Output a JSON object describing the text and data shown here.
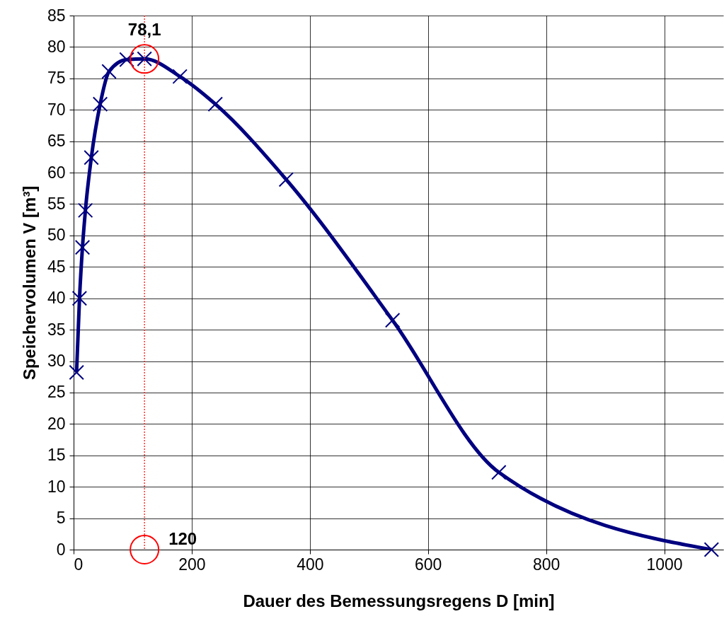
{
  "chart_data": {
    "type": "line",
    "xlabel": "Dauer des Bemessungsregens  D [min]",
    "ylabel": "Speichervolumen V [m³]",
    "x": [
      5,
      10,
      15,
      20,
      30,
      45,
      60,
      90,
      120,
      180,
      240,
      360,
      540,
      720,
      1080
    ],
    "series": [
      {
        "color": "#000080",
        "values": [
          28.2,
          40.0,
          48.1,
          54.0,
          62.4,
          70.9,
          76.1,
          78.0,
          78.1,
          75.3,
          70.9,
          58.9,
          36.5,
          12.3,
          0
        ]
      }
    ],
    "xlim": [
      0,
      1100
    ],
    "xticks": [
      0,
      200,
      400,
      600,
      800,
      1000
    ],
    "ylim": [
      0,
      85
    ],
    "yticks": [
      0,
      5,
      10,
      15,
      20,
      25,
      30,
      35,
      40,
      45,
      50,
      55,
      60,
      65,
      70,
      75,
      80,
      85
    ],
    "grid": true,
    "marker": "cross",
    "line_style": "solid",
    "ref_lines": [
      {
        "axis": "x",
        "value": 120,
        "color": "#ff0000",
        "line_style": "dotted"
      }
    ],
    "annotations": [
      {
        "text": "78,1",
        "x": 120,
        "y": 78.1
      },
      {
        "text": "120",
        "x": 120,
        "y": 0
      }
    ]
  }
}
